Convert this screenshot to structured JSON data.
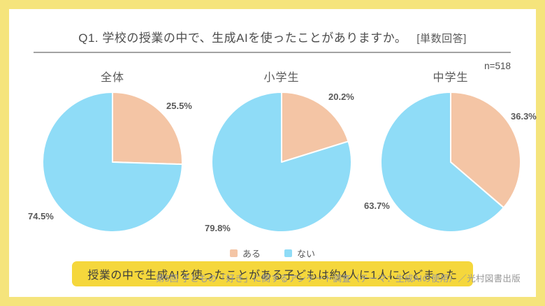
{
  "frame": {
    "border_color": "#F5E47C",
    "background": "#FFFFFF"
  },
  "header": {
    "title": "Q1. 学校の授業の中で、生成AIを使ったことがありますか。",
    "answer_type": "[単数回答]",
    "sample_size": "n=518"
  },
  "chart_data": {
    "type": "pie",
    "title": "Q1. 学校の授業の中で、生成AIを使ったことがありますか。",
    "sample_size": 518,
    "legend_position": "bottom-center",
    "legend": [
      {
        "name": "ある",
        "color": "#F4C5A5"
      },
      {
        "name": "ない",
        "color": "#8FDCF7"
      }
    ],
    "start_angle": "12-oclock",
    "direction": "clockwise",
    "charts": [
      {
        "title": "全体",
        "slices": [
          {
            "name": "ある",
            "value": 25.5,
            "label": "25.5%"
          },
          {
            "name": "ない",
            "value": 74.5,
            "label": "74.5%"
          }
        ]
      },
      {
        "title": "小学生",
        "slices": [
          {
            "name": "ある",
            "value": 20.2,
            "label": "20.2%"
          },
          {
            "name": "ない",
            "value": 79.8,
            "label": "79.8%"
          }
        ]
      },
      {
        "title": "中学生",
        "slices": [
          {
            "name": "ある",
            "value": 36.3,
            "label": "36.3%"
          },
          {
            "name": "ない",
            "value": 63.7,
            "label": "63.7%"
          }
        ]
      }
    ]
  },
  "callout": {
    "text": "授業の中で生成AIを使ったことがある子どもは約4人に1人にとどまった",
    "background": "#F5D73C"
  },
  "footer": {
    "text": "第5回 子どもの「好き」に関するアンケート調査（テーマ：生成AIの使用）／光村図書出版"
  }
}
